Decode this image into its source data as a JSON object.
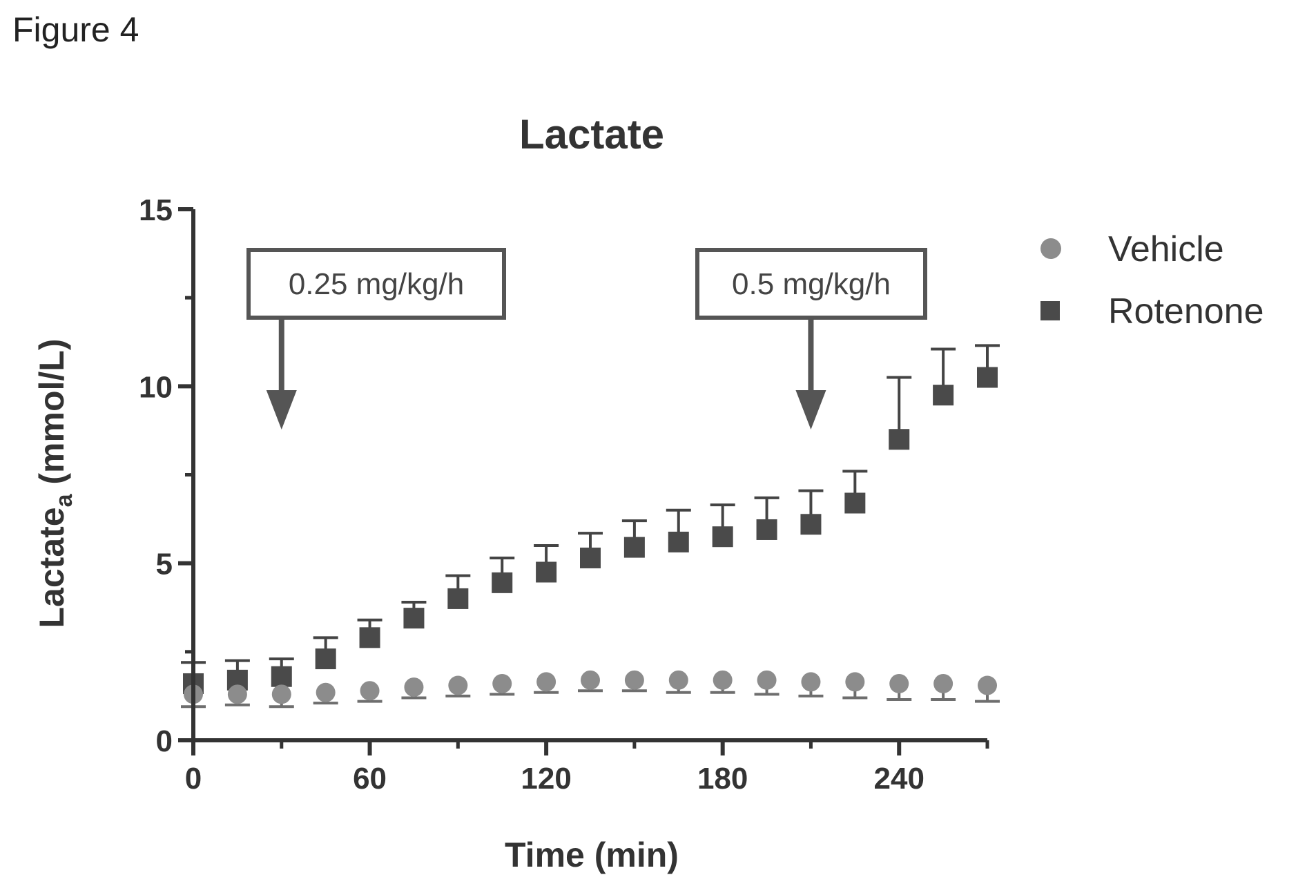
{
  "figure_label": "Figure 4",
  "chart_data": {
    "type": "scatter",
    "title": "Lactate",
    "xlabel": "Time (min)",
    "ylabel": "Lactate",
    "ylabel_sub": "a",
    "ylabel_units": " (mmol/L)",
    "xlim": [
      0,
      270
    ],
    "ylim": [
      0,
      15
    ],
    "xticks": [
      0,
      60,
      120,
      180,
      240
    ],
    "yticks": [
      0,
      5,
      10,
      15
    ],
    "grid": false,
    "legend_position": "top-right",
    "annotations": [
      {
        "text": "0.25 mg/kg/h",
        "x": 30
      },
      {
        "text": "0.5 mg/kg/h",
        "x": 210
      }
    ],
    "x": [
      0,
      15,
      30,
      45,
      60,
      75,
      90,
      105,
      120,
      135,
      150,
      165,
      180,
      195,
      210,
      225,
      240,
      255,
      270
    ],
    "series": [
      {
        "name": "Vehicle",
        "marker": "circle",
        "color": "#8c8c8c",
        "values": [
          1.3,
          1.3,
          1.3,
          1.35,
          1.4,
          1.5,
          1.55,
          1.6,
          1.65,
          1.7,
          1.7,
          1.7,
          1.7,
          1.7,
          1.65,
          1.65,
          1.6,
          1.6,
          1.55
        ],
        "err_low": [
          0.35,
          0.3,
          0.35,
          0.3,
          0.3,
          0.3,
          0.3,
          0.3,
          0.3,
          0.3,
          0.3,
          0.35,
          0.35,
          0.4,
          0.4,
          0.45,
          0.45,
          0.45,
          0.45
        ]
      },
      {
        "name": "Rotenone",
        "marker": "square",
        "color": "#4a4a4a",
        "values": [
          1.6,
          1.7,
          1.8,
          2.3,
          2.9,
          3.45,
          4.0,
          4.45,
          4.75,
          5.15,
          5.45,
          5.6,
          5.75,
          5.95,
          6.1,
          6.7,
          8.5,
          9.75,
          10.25
        ],
        "err_high": [
          0.6,
          0.55,
          0.5,
          0.6,
          0.5,
          0.45,
          0.65,
          0.7,
          0.75,
          0.7,
          0.75,
          0.9,
          0.9,
          0.9,
          0.95,
          0.9,
          1.75,
          1.3,
          0.9
        ]
      }
    ]
  }
}
